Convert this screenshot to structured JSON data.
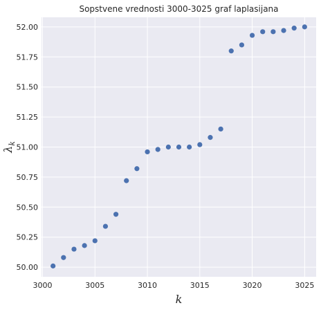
{
  "chart_data": {
    "type": "scatter",
    "title": "Sopstvene vrednosti 3000-3025 graf laplasijana",
    "xlabel": "k",
    "ylabel": "λ",
    "ylabel_subscript": "k",
    "xlim": [
      2999.9,
      3026.1
    ],
    "ylim": [
      49.92,
      52.08
    ],
    "xticks": [
      3000,
      3005,
      3010,
      3015,
      3020,
      3025
    ],
    "xtick_labels": [
      "3000",
      "3005",
      "3010",
      "3015",
      "3020",
      "3025"
    ],
    "yticks": [
      50.0,
      50.25,
      50.5,
      50.75,
      51.0,
      51.25,
      51.5,
      51.75,
      52.0
    ],
    "ytick_labels": [
      "50.00",
      "50.25",
      "50.50",
      "50.75",
      "51.00",
      "51.25",
      "51.50",
      "51.75",
      "52.00"
    ],
    "grid": true,
    "background_color": "#eaeaf2",
    "grid_color": "#ffffff",
    "marker_color": "#4c72b0",
    "x": [
      3001,
      3002,
      3003,
      3004,
      3005,
      3006,
      3007,
      3008,
      3009,
      3010,
      3011,
      3012,
      3013,
      3014,
      3015,
      3016,
      3017,
      3018,
      3019,
      3020,
      3021,
      3022,
      3023,
      3024,
      3025
    ],
    "y": [
      50.01,
      50.08,
      50.15,
      50.18,
      50.22,
      50.34,
      50.44,
      50.72,
      50.82,
      50.96,
      50.98,
      51.0,
      51.0,
      51.0,
      51.02,
      51.08,
      51.15,
      51.8,
      51.85,
      51.93,
      51.96,
      51.96,
      51.97,
      51.99,
      52.0
    ]
  }
}
